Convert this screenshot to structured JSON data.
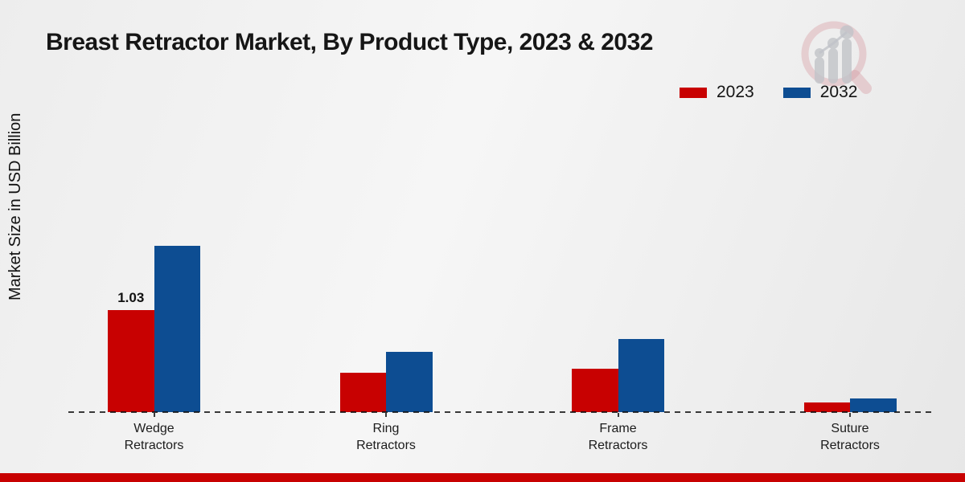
{
  "title": "Breast Retractor Market, By Product Type, 2023 & 2032",
  "y_axis_label": "Market Size in USD Billion",
  "legend": {
    "items": [
      {
        "label": "2023",
        "color": "#c80101"
      },
      {
        "label": "2032",
        "color": "#0d4d92"
      }
    ]
  },
  "chart_data": {
    "type": "bar",
    "categories": [
      "Wedge Retractors",
      "Ring Retractors",
      "Frame Retractors",
      "Suture Retractors"
    ],
    "series": [
      {
        "name": "2023",
        "color": "#c80101",
        "values": [
          1.03,
          0.4,
          0.44,
          0.1
        ]
      },
      {
        "name": "2032",
        "color": "#0d4d92",
        "values": [
          1.68,
          0.61,
          0.74,
          0.14
        ]
      }
    ],
    "value_labels": [
      {
        "series_index": 0,
        "category_index": 0,
        "text": "1.03"
      }
    ],
    "title": "Breast Retractor Market, By Product Type, 2023 & 2032",
    "xlabel": "",
    "ylabel": "Market Size in USD Billion",
    "ylim": [
      0,
      2
    ],
    "grid": false,
    "legend_position": "top-right",
    "baseline_style": "dashed"
  },
  "footer": {
    "accent_bar_color": "#c80101"
  },
  "watermark": {
    "name": "market-research-logo"
  }
}
